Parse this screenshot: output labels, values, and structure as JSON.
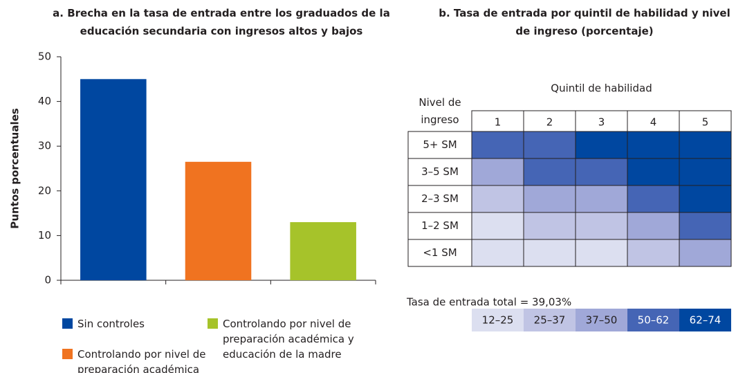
{
  "chart_data": [
    {
      "type": "bar",
      "title": "a. Brecha en la tasa de entrada entre los graduados de la educación secundaria con ingresos altos y bajos",
      "y_label": "Puntos porcentuales",
      "categories": [
        "Sin controles",
        "Controlando por nivel de preparación académica",
        "Controlando por nivel de preparación académica y educación de la madre"
      ],
      "values": [
        45,
        26.5,
        13
      ],
      "colors": [
        "#0047a0",
        "#f07320",
        "#a6c32a"
      ],
      "ylim": [
        0,
        50
      ],
      "yticks": [
        0,
        10,
        20,
        30,
        40,
        50
      ]
    },
    {
      "type": "heatmap",
      "title": "b. Tasa de entrada por quintil de habilidad y nivel de ingreso (porcentaje)",
      "x_label": "Quintil de habilidad",
      "y_label": "Nivel de ingreso",
      "x": [
        "1",
        "2",
        "3",
        "4",
        "5"
      ],
      "y": [
        "5+ SM",
        "3–5 SM",
        "2–3 SM",
        "1–2 SM",
        "<1 SM"
      ],
      "values": [
        [
          56,
          56,
          68,
          68,
          68
        ],
        [
          43.5,
          56,
          56,
          68,
          68
        ],
        [
          31,
          43.5,
          43.5,
          56,
          68
        ],
        [
          18.5,
          31,
          31,
          43.5,
          56
        ],
        [
          18.5,
          18.5,
          18.5,
          31,
          43.5
        ]
      ],
      "bins": [
        12,
        25,
        37,
        50,
        62,
        74
      ],
      "bin_labels": [
        "12–25",
        "25–37",
        "37–50",
        "50–62",
        "62–74"
      ],
      "colors": [
        "#dcdff0",
        "#c0c4e4",
        "#a0a8d8",
        "#4565b5",
        "#0047a0"
      ],
      "annotation": "Tasa de entrada total = 39,03%"
    }
  ]
}
